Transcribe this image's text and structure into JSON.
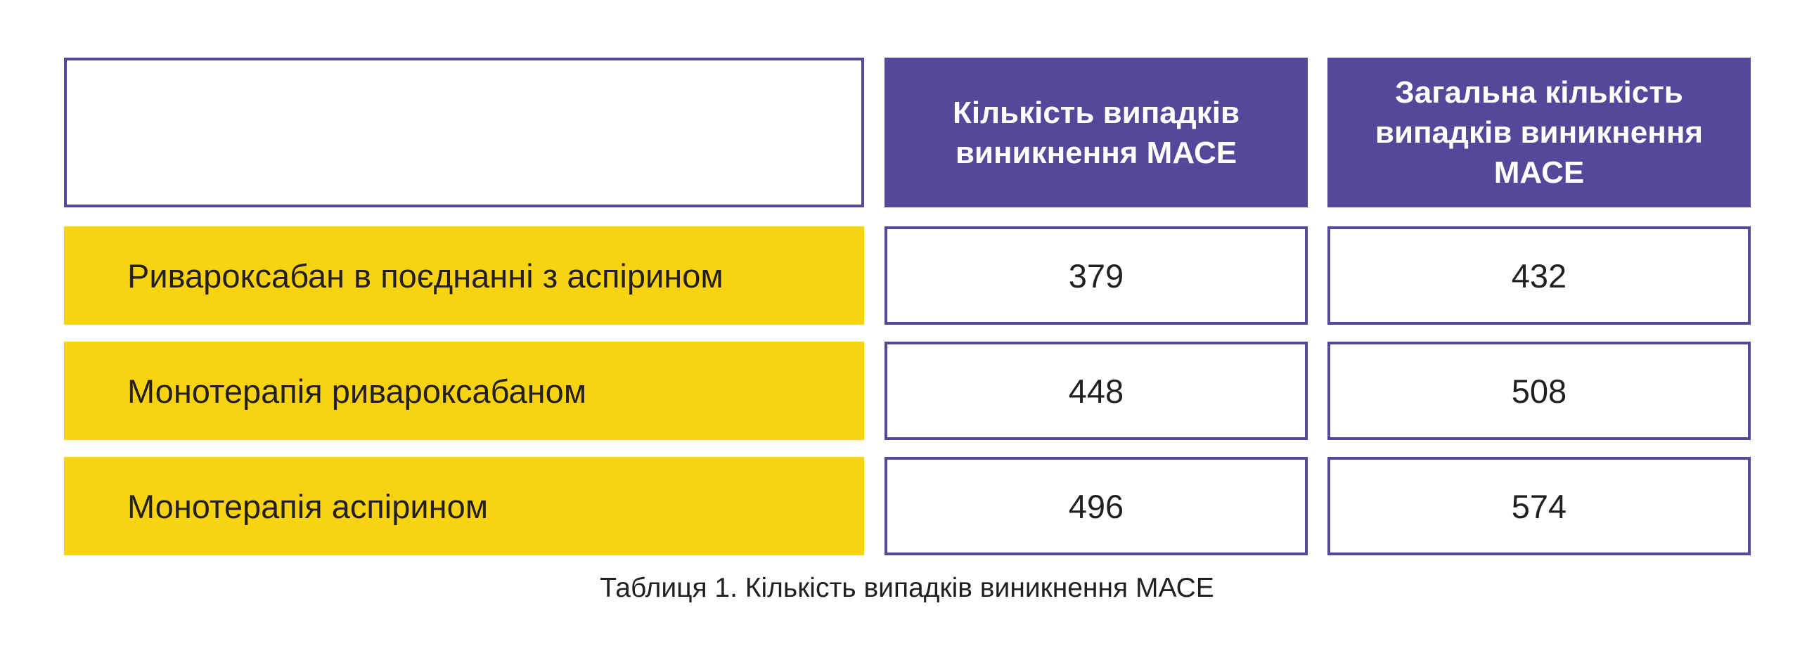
{
  "chart_data": {
    "type": "table",
    "columns": [
      "",
      "Кількість випадків виникнення МАСЕ",
      "Загальна кількість випадків виникнення МАСЕ"
    ],
    "rows": [
      {
        "label": "Ривароксабан в поєднанні з аспірином",
        "values": [
          "379",
          "432"
        ]
      },
      {
        "label": "Монотерапія ривароксабаном",
        "values": [
          "448",
          "508"
        ]
      },
      {
        "label": "Монотерапія аспірином",
        "values": [
          "496",
          "574"
        ]
      }
    ],
    "caption": "Таблиця 1. Кількість випадків виникнення МАСЕ"
  },
  "colors": {
    "header_bg": "#54489b",
    "label_bg": "#f8d311",
    "border": "#54489b"
  }
}
